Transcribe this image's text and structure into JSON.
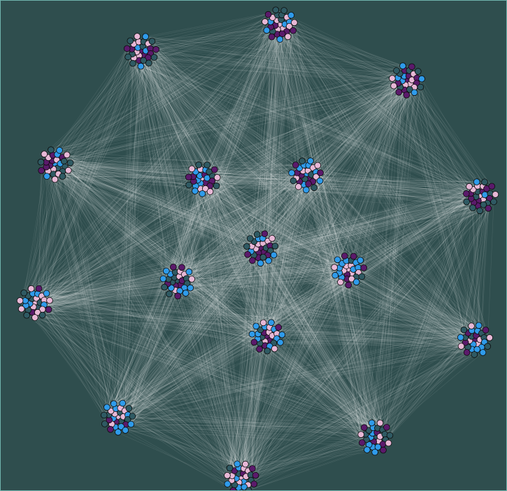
{
  "graph": {
    "type": "clustered network",
    "clusters": [
      {
        "id": "cluster-1",
        "nodes": 30
      },
      {
        "id": "cluster-2",
        "nodes": 30
      },
      {
        "id": "cluster-3",
        "nodes": 30
      },
      {
        "id": "cluster-4",
        "nodes": 30
      },
      {
        "id": "cluster-5",
        "nodes": 30
      },
      {
        "id": "cluster-6",
        "nodes": 30
      },
      {
        "id": "cluster-7",
        "nodes": 30
      },
      {
        "id": "cluster-8",
        "nodes": 30
      },
      {
        "id": "cluster-9",
        "nodes": 30
      },
      {
        "id": "cluster-10",
        "nodes": 30
      },
      {
        "id": "cluster-11",
        "nodes": 30
      },
      {
        "id": "cluster-12",
        "nodes": 30
      },
      {
        "id": "cluster-13",
        "nodes": 30
      },
      {
        "id": "cluster-14",
        "nodes": 30
      },
      {
        "id": "cluster-15",
        "nodes": 30
      },
      {
        "id": "cluster-16",
        "nodes": 30
      }
    ],
    "edges_between_clusters": "all pairs",
    "colors": {
      "background": "#2f4e4e",
      "border": "#6fb3ad",
      "edge": "#ffffff",
      "node_stroke": "#0b0b0b",
      "node_palette": [
        "#2f9bea",
        "#5b1a6b",
        "#e7b8d6",
        "#2f5a63"
      ]
    }
  }
}
